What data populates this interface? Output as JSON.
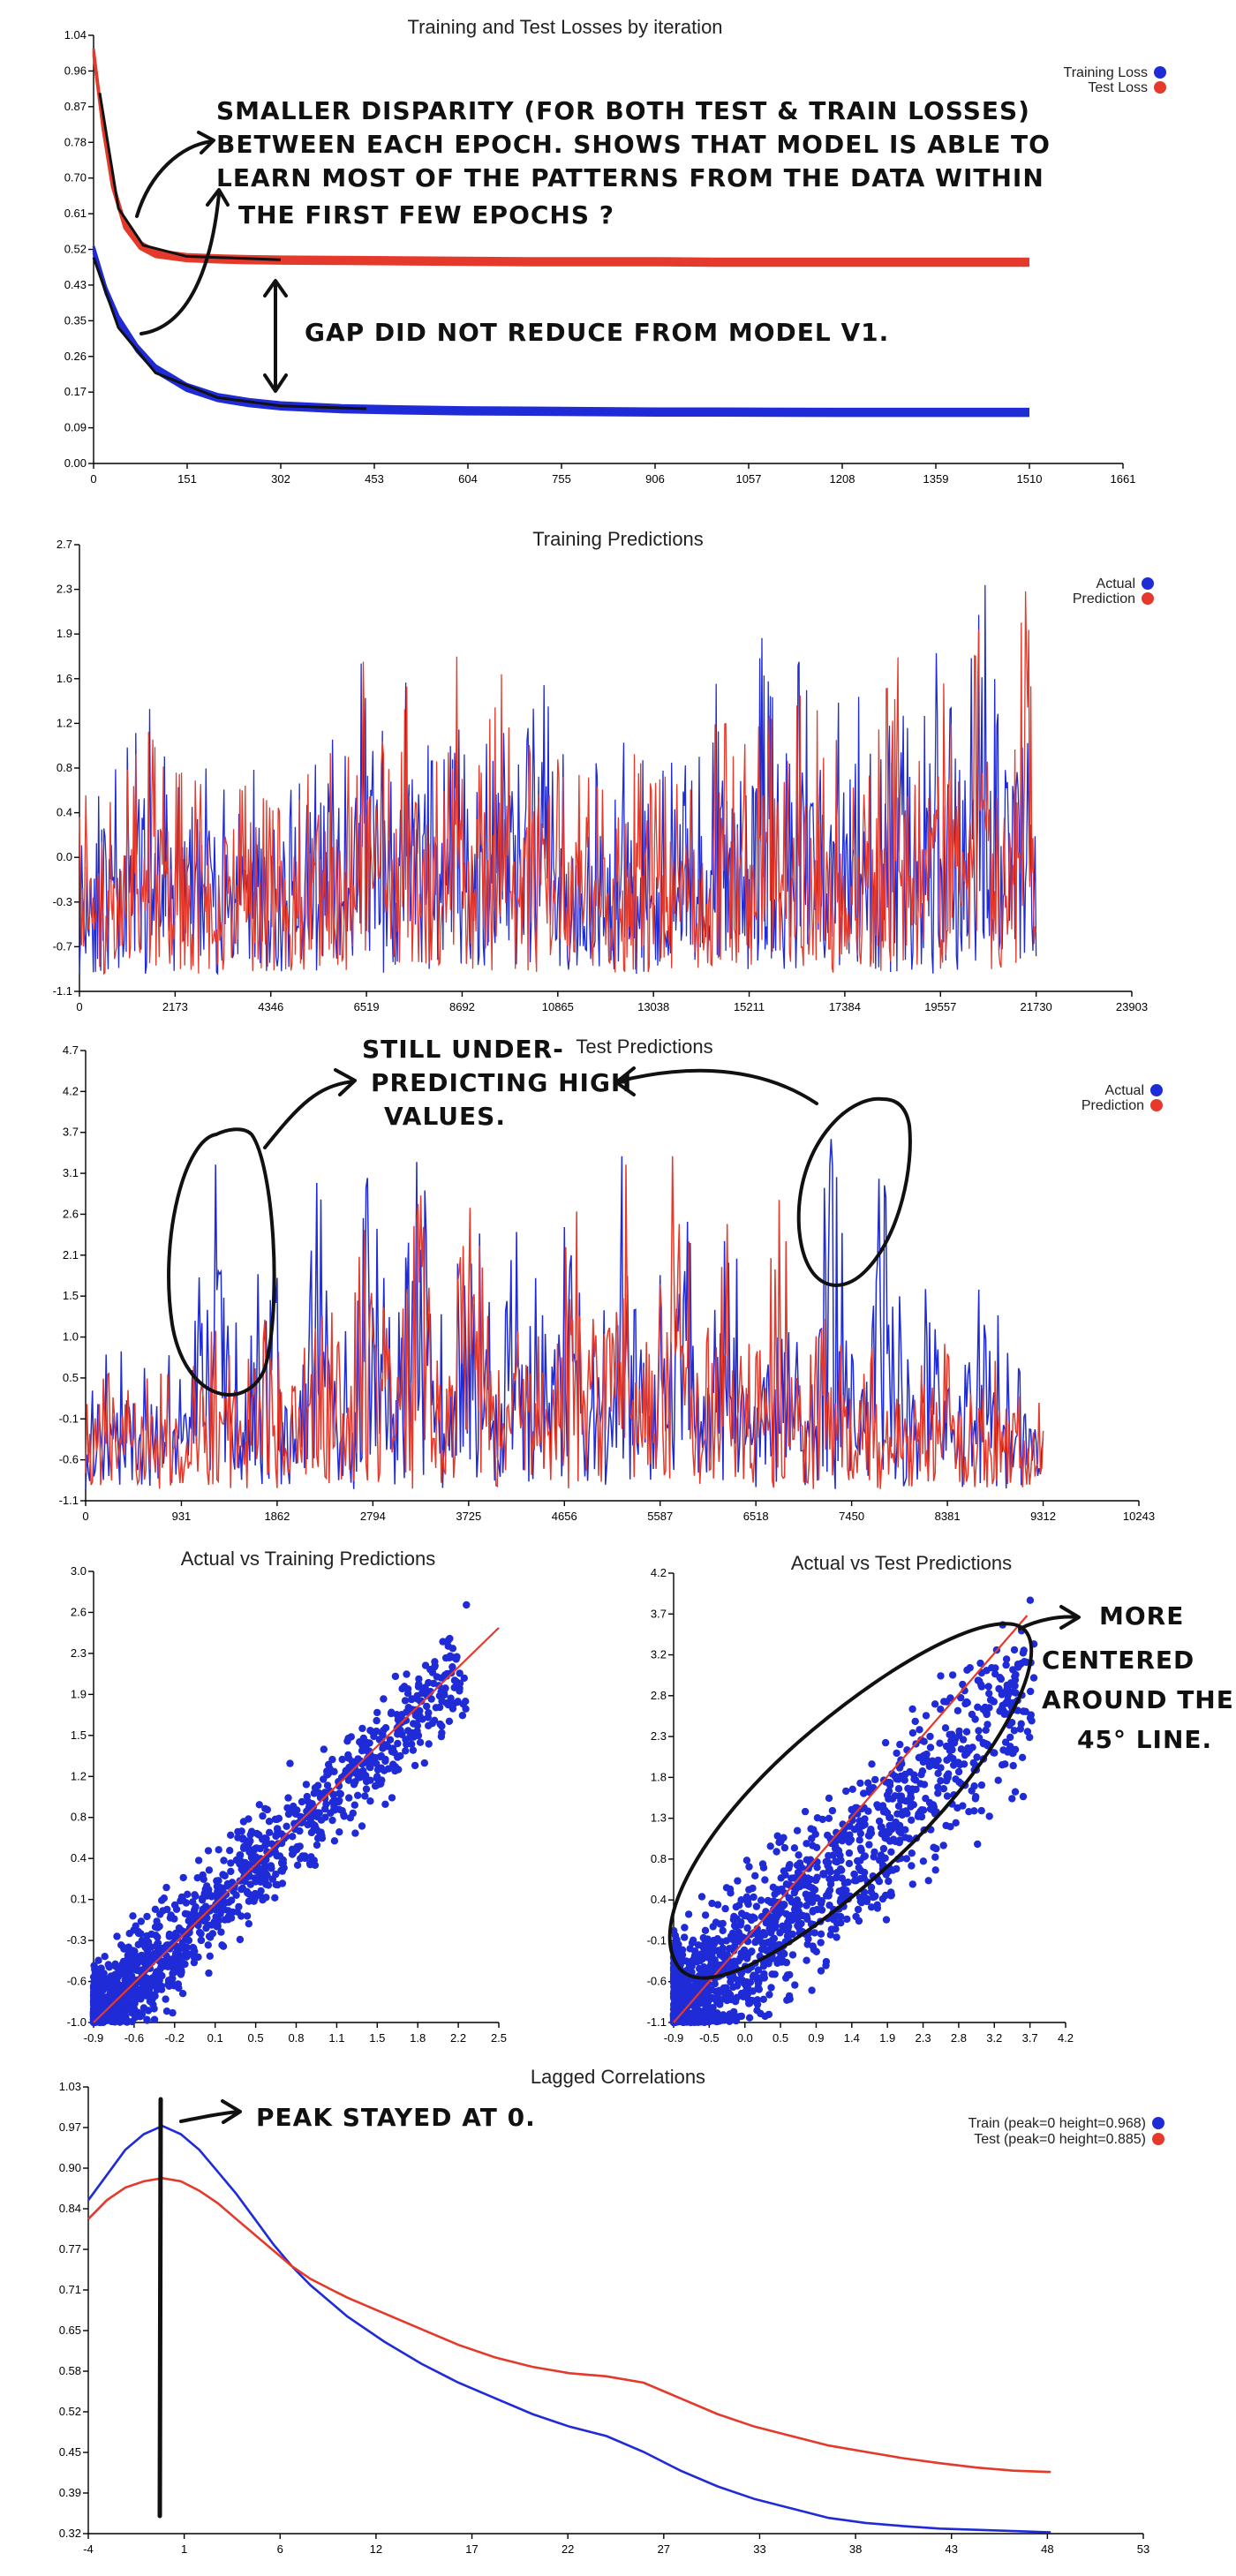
{
  "colors": {
    "blue": "#1f2bd6",
    "red": "#e4392b",
    "ink": "#111111"
  },
  "chart_data": [
    {
      "id": "losses",
      "type": "line",
      "title": "Training and Test Losses by iteration",
      "xlim": [
        0,
        1661
      ],
      "ylim": [
        0,
        1.04
      ],
      "x_ticks": [
        "0",
        "151",
        "302",
        "453",
        "604",
        "755",
        "906",
        "1057",
        "1208",
        "1359",
        "1510",
        "1661"
      ],
      "y_ticks": [
        "0.00",
        "0.09",
        "0.17",
        "0.26",
        "0.35",
        "0.43",
        "0.52",
        "0.61",
        "0.70",
        "0.78",
        "0.87",
        "0.96",
        "1.04"
      ],
      "legend_position": "top-right",
      "series": [
        {
          "name": "Training Loss",
          "color": "blue",
          "x": [
            0,
            20,
            40,
            70,
            100,
            150,
            200,
            250,
            302,
            400,
            500,
            600,
            700,
            800,
            906,
            1000,
            1200,
            1400,
            1510
          ],
          "y": [
            0.52,
            0.42,
            0.35,
            0.28,
            0.23,
            0.185,
            0.16,
            0.148,
            0.14,
            0.133,
            0.13,
            0.128,
            0.127,
            0.126,
            0.125,
            0.125,
            0.124,
            0.124,
            0.124
          ]
        },
        {
          "name": "Test Loss",
          "color": "red",
          "x": [
            0,
            15,
            30,
            50,
            75,
            100,
            150,
            200,
            250,
            302,
            400,
            500,
            600,
            700,
            800,
            906,
            1000,
            1200,
            1400,
            1510
          ],
          "y": [
            1.0,
            0.82,
            0.68,
            0.58,
            0.53,
            0.51,
            0.5,
            0.497,
            0.495,
            0.494,
            0.493,
            0.492,
            0.491,
            0.49,
            0.49,
            0.49,
            0.489,
            0.489,
            0.489,
            0.489
          ]
        }
      ]
    },
    {
      "id": "train_pred",
      "type": "line",
      "title": "Training Predictions",
      "xlim": [
        0,
        23903
      ],
      "ylim": [
        -1.1,
        2.7
      ],
      "x_ticks": [
        "0",
        "2173",
        "4346",
        "6519",
        "8692",
        "10865",
        "13038",
        "15211",
        "17384",
        "19557",
        "21730",
        "23903"
      ],
      "y_ticks": [
        "-1.1",
        "-0.7",
        "-0.3",
        "0.0",
        "0.4",
        "0.8",
        "1.2",
        "1.6",
        "1.9",
        "2.3",
        "2.7"
      ],
      "legend_position": "top-right",
      "series": [
        {
          "name": "Actual",
          "color": "blue",
          "x": [
            0,
            500,
            1000,
            1500,
            2000,
            2500,
            3000,
            3500,
            4000,
            4500,
            5000,
            5500,
            6000,
            6500,
            7000,
            7500,
            8000,
            8500,
            9000,
            9500,
            10000,
            10500,
            11000,
            11500,
            12000,
            12500,
            13000,
            13500,
            14000,
            14500,
            15000,
            15500,
            16000,
            16500,
            17000,
            17500,
            18000,
            18500,
            19000,
            19500,
            20000,
            20500,
            21000,
            21500,
            21730
          ],
          "y": [
            -0.8,
            0.6,
            -0.9,
            1.4,
            -1.0,
            0.9,
            -0.8,
            0.7,
            -0.9,
            0.6,
            -0.8,
            1.3,
            -0.9,
            2.1,
            -1.0,
            1.8,
            -0.9,
            2.2,
            -1.0,
            2.0,
            -0.9,
            1.6,
            -1.0,
            0.9,
            -0.8,
            1.1,
            -0.9,
            0.9,
            -0.8,
            1.6,
            -1.0,
            2.0,
            -0.9,
            2.1,
            -1.0,
            1.9,
            -0.9,
            2.3,
            -1.0,
            2.1,
            -0.9,
            2.6,
            -1.0,
            2.2,
            -0.8
          ]
        },
        {
          "name": "Prediction",
          "color": "red",
          "x": [
            0,
            500,
            1000,
            1500,
            2000,
            2500,
            3000,
            3500,
            4000,
            4500,
            5000,
            5500,
            6000,
            6500,
            7000,
            7500,
            8000,
            8500,
            9000,
            9500,
            10000,
            10500,
            11000,
            11500,
            12000,
            12500,
            13000,
            13500,
            14000,
            14500,
            15000,
            15500,
            16000,
            16500,
            17000,
            17500,
            18000,
            18500,
            19000,
            19500,
            20000,
            20500,
            21000,
            21500,
            21730
          ],
          "y": [
            -0.6,
            0.5,
            -0.7,
            1.2,
            -0.8,
            0.8,
            -0.6,
            0.6,
            -0.7,
            0.5,
            -0.6,
            1.1,
            -0.7,
            1.9,
            -0.8,
            1.6,
            -0.7,
            2.0,
            -0.8,
            1.8,
            -0.7,
            1.4,
            -0.8,
            0.8,
            -0.6,
            1.0,
            -0.7,
            0.8,
            -0.6,
            1.4,
            -0.8,
            1.8,
            -0.7,
            1.9,
            -0.8,
            1.7,
            -0.7,
            2.1,
            -0.8,
            1.9,
            -0.7,
            2.4,
            -0.8,
            2.6,
            -0.6
          ]
        }
      ]
    },
    {
      "id": "test_pred",
      "type": "line",
      "title": "Test Predictions",
      "xlim": [
        0,
        10243
      ],
      "ylim": [
        -1.1,
        4.7
      ],
      "x_ticks": [
        "0",
        "931",
        "1862",
        "2794",
        "3725",
        "4656",
        "5587",
        "6518",
        "7450",
        "8381",
        "9312",
        "10243"
      ],
      "y_ticks": [
        "-1.1",
        "-0.6",
        "-0.1",
        "0.5",
        "1.0",
        "1.5",
        "2.1",
        "2.6",
        "3.1",
        "3.7",
        "4.2",
        "4.7"
      ],
      "legend_position": "top-right",
      "series": [
        {
          "name": "Actual",
          "color": "blue",
          "x": [
            0,
            250,
            500,
            750,
            1000,
            1250,
            1500,
            1750,
            2000,
            2250,
            2500,
            2750,
            3000,
            3250,
            3500,
            3750,
            4000,
            4250,
            4500,
            4750,
            5000,
            5250,
            5500,
            5750,
            6000,
            6250,
            6500,
            6750,
            7000,
            7250,
            7500,
            7750,
            8000,
            8250,
            8500,
            8750,
            9000,
            9312
          ],
          "y": [
            -0.5,
            1.0,
            -0.6,
            0.8,
            -0.7,
            3.6,
            -0.8,
            2.9,
            -0.6,
            3.5,
            -0.9,
            3.3,
            -0.8,
            3.7,
            -1.0,
            3.4,
            -0.7,
            3.1,
            -0.9,
            3.6,
            -1.0,
            3.8,
            -0.8,
            3.7,
            -0.9,
            3.4,
            -0.8,
            3.6,
            -0.9,
            3.7,
            -0.8,
            3.5,
            -0.7,
            2.1,
            -0.8,
            1.9,
            -0.7,
            -0.3
          ]
        },
        {
          "name": "Prediction",
          "color": "red",
          "x": [
            0,
            250,
            500,
            750,
            1000,
            1250,
            1500,
            1750,
            2000,
            2250,
            2500,
            2750,
            3000,
            3250,
            3500,
            3750,
            4000,
            4250,
            4500,
            4750,
            5000,
            5250,
            5500,
            5750,
            6000,
            6250,
            6500,
            6750,
            7000,
            7250,
            7500,
            7750,
            8000,
            8250,
            8500,
            8750,
            9000,
            9312
          ],
          "y": [
            -0.3,
            0.7,
            -0.4,
            0.6,
            -0.5,
            1.2,
            -0.6,
            1.4,
            -0.4,
            2.6,
            -0.7,
            2.8,
            -0.6,
            3.0,
            -0.8,
            3.0,
            -0.5,
            2.7,
            -0.7,
            3.0,
            -0.8,
            3.3,
            -0.6,
            4.1,
            -0.7,
            2.8,
            -0.6,
            3.0,
            -0.7,
            1.6,
            -0.6,
            1.3,
            -0.5,
            1.2,
            -0.6,
            0.9,
            -0.5,
            -0.2
          ]
        }
      ]
    },
    {
      "id": "scatter_train",
      "type": "scatter",
      "title": "Actual vs Training Predictions",
      "xlim": [
        -0.9,
        2.5
      ],
      "ylim": [
        -1.0,
        3.0
      ],
      "x_ticks": [
        "-0.9",
        "-0.6",
        "-0.2",
        "0.1",
        "0.5",
        "0.8",
        "1.1",
        "1.5",
        "1.8",
        "2.2",
        "2.5"
      ],
      "y_ticks": [
        "-1.0",
        "-0.6",
        "-0.3",
        "0.1",
        "0.4",
        "0.8",
        "1.2",
        "1.5",
        "1.9",
        "2.3",
        "2.6",
        "3.0"
      ],
      "reference_line": [
        [
          -0.9,
          -1.0
        ],
        [
          2.5,
          2.5
        ]
      ],
      "point_count": 1400,
      "slope": 1.0,
      "spread": 0.22
    },
    {
      "id": "scatter_test",
      "type": "scatter",
      "title": "Actual vs Test Predictions",
      "xlim": [
        -0.9,
        4.2
      ],
      "ylim": [
        -1.1,
        4.2
      ],
      "x_ticks": [
        "-0.9",
        "-0.5",
        "0.0",
        "0.5",
        "0.9",
        "1.4",
        "1.9",
        "2.3",
        "2.8",
        "3.2",
        "3.7",
        "4.2"
      ],
      "y_ticks": [
        "-1.1",
        "-0.6",
        "-0.1",
        "0.4",
        "0.8",
        "1.3",
        "1.8",
        "2.3",
        "2.8",
        "3.2",
        "3.7",
        "4.2"
      ],
      "reference_line": [
        [
          -0.9,
          -1.1
        ],
        [
          3.7,
          3.7
        ]
      ],
      "point_count": 1600,
      "slope": 0.85,
      "spread": 0.45
    },
    {
      "id": "lagged",
      "type": "line",
      "title": "Lagged Correlations",
      "xlim": [
        -4,
        53
      ],
      "ylim": [
        0.32,
        1.03
      ],
      "x_ticks": [
        "-4",
        "1",
        "6",
        "12",
        "17",
        "22",
        "27",
        "33",
        "38",
        "43",
        "48",
        "53"
      ],
      "y_ticks": [
        "0.32",
        "0.39",
        "0.45",
        "0.52",
        "0.58",
        "0.65",
        "0.71",
        "0.77",
        "0.84",
        "0.90",
        "0.97",
        "1.03"
      ],
      "legend_position": "top-right",
      "series": [
        {
          "name": "Train (peak=0 height=0.968)",
          "color": "blue",
          "x": [
            -4,
            -3,
            -2,
            -1,
            0,
            1,
            2,
            3,
            4,
            5,
            6,
            7,
            8,
            9,
            10,
            12,
            14,
            16,
            18,
            20,
            22,
            24,
            26,
            28,
            30,
            32,
            34,
            36,
            38,
            40,
            42,
            44,
            46,
            48
          ],
          "y": [
            0.85,
            0.89,
            0.93,
            0.955,
            0.968,
            0.955,
            0.93,
            0.895,
            0.86,
            0.82,
            0.78,
            0.745,
            0.715,
            0.69,
            0.665,
            0.625,
            0.59,
            0.56,
            0.535,
            0.51,
            0.49,
            0.475,
            0.45,
            0.42,
            0.395,
            0.375,
            0.36,
            0.345,
            0.337,
            0.332,
            0.328,
            0.326,
            0.324,
            0.322
          ]
        },
        {
          "name": "Test (peak=0 height=0.885)",
          "color": "red",
          "x": [
            -4,
            -3,
            -2,
            -1,
            0,
            1,
            2,
            3,
            4,
            5,
            6,
            7,
            8,
            9,
            10,
            12,
            14,
            16,
            18,
            20,
            22,
            24,
            26,
            28,
            30,
            32,
            34,
            36,
            38,
            40,
            42,
            44,
            46,
            48
          ],
          "y": [
            0.82,
            0.85,
            0.87,
            0.88,
            0.885,
            0.88,
            0.865,
            0.845,
            0.82,
            0.795,
            0.77,
            0.745,
            0.725,
            0.71,
            0.695,
            0.67,
            0.645,
            0.62,
            0.6,
            0.585,
            0.575,
            0.57,
            0.56,
            0.535,
            0.51,
            0.49,
            0.475,
            0.46,
            0.45,
            0.44,
            0.432,
            0.425,
            0.42,
            0.418
          ]
        }
      ]
    }
  ],
  "annotations": {
    "loss_note_lines": [
      "SMALLER DISPARITY (FOR BOTH TEST & TRAIN LOSSES)",
      "BETWEEN EACH EPOCH. SHOWS THAT MODEL IS ABLE TO",
      "LEARN MOST OF THE PATTERNS FROM THE DATA WITHIN",
      "THE FIRST FEW EPOCHS ?"
    ],
    "gap_note": "GAP DID NOT REDUCE FROM MODEL V1.",
    "test_note_lines": [
      "STILL UNDER-",
      "PREDICTING HIGH",
      "VALUES."
    ],
    "scatter_note_lines": [
      "MORE",
      "CENTERED",
      "AROUND THE",
      "45° LINE."
    ],
    "peak_note": "PEAK STAYED AT 0."
  }
}
